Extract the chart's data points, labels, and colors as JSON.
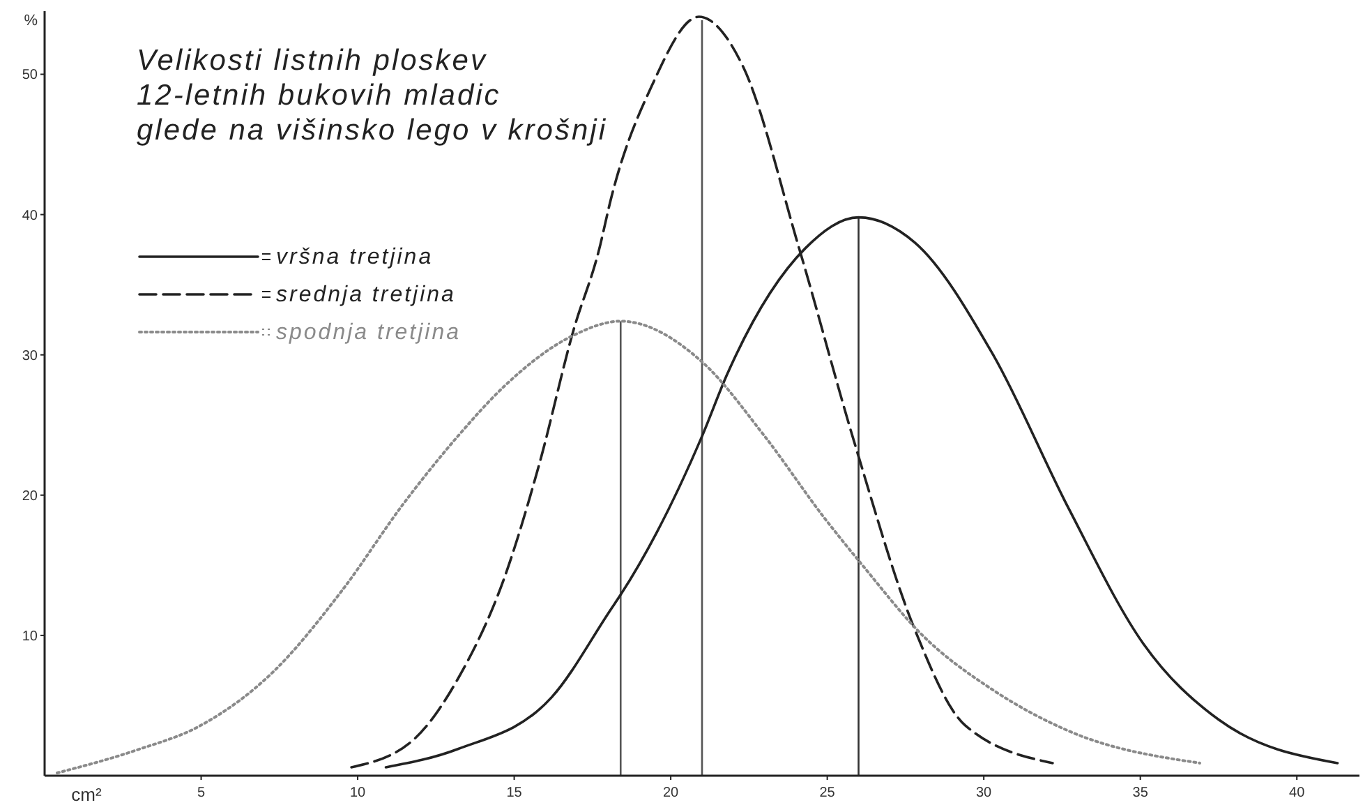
{
  "chart_data": {
    "type": "line",
    "title": "Velikosti listnih ploskev\n12-letnih bukovih mladic\nglede na višinsko lego v krošnji",
    "xlabel": "cm²",
    "ylabel": "%",
    "xlim": [
      0,
      42
    ],
    "ylim": [
      0,
      54.5
    ],
    "xticks": [
      5,
      10,
      15,
      20,
      25,
      30,
      35,
      40
    ],
    "yticks": [
      10,
      20,
      30,
      40,
      50
    ],
    "grid": false,
    "legend": "top left",
    "marker": "none",
    "series": [
      {
        "name": "vršna tretjina",
        "color": "#222222",
        "line_style": "solid",
        "x": [
          10.9,
          13.2,
          16.2,
          18.1,
          18.4,
          21.0,
          21.8,
          24.3,
          26.0,
          27.8,
          30.3,
          32.7,
          35.1,
          37.5,
          41.3
        ],
        "values": [
          0.6,
          1.9,
          5.6,
          11.9,
          12.9,
          24.2,
          28.6,
          37.6,
          39.8,
          38.0,
          30.0,
          19.1,
          9.4,
          4.0,
          0.9
        ]
      },
      {
        "name": "srednja tretjina",
        "color": "#222222",
        "line_style": "dashed",
        "x": [
          9.8,
          11.8,
          13.2,
          14.7,
          15.8,
          16.9,
          17.7,
          18.1,
          19.4,
          20.9,
          22.3,
          24.1,
          25.9,
          27.8,
          29.4,
          32.2
        ],
        "values": [
          0.6,
          2.6,
          6.9,
          14.2,
          22.2,
          31.8,
          37.4,
          41.2,
          49.2,
          54.1,
          50.6,
          37.6,
          23.5,
          10.4,
          3.6,
          0.9
        ]
      },
      {
        "name": "spodnja tretjina",
        "color": "#8a8a8a",
        "line_style": "dotted",
        "x": [
          0.4,
          2.9,
          5.0,
          7.3,
          9.5,
          11.5,
          13.2,
          14.7,
          16.9,
          18.4,
          21.0,
          23.0,
          24.9,
          26.2,
          28.0,
          30.3,
          32.7,
          36.9
        ],
        "values": [
          0.2,
          1.8,
          3.6,
          7.4,
          13.2,
          19.5,
          24.2,
          27.8,
          31.4,
          32.4,
          29.5,
          24.2,
          18.4,
          14.8,
          10.1,
          6.1,
          3.2,
          0.9
        ]
      }
    ],
    "ref_lines": [
      {
        "axis": "x",
        "value": 18.4,
        "color": "#555555"
      },
      {
        "axis": "x",
        "value": 21.0,
        "color": "#555555"
      },
      {
        "axis": "x",
        "value": 26.0,
        "color": "#333333"
      }
    ]
  }
}
